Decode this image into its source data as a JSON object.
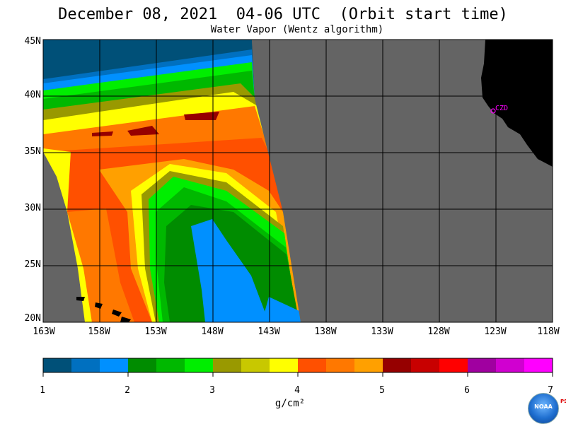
{
  "header": {
    "title": "December 08, 2021  04-06 UTC  (Orbit start time)",
    "subtitle": "Water Vapor (Wentz algorithm)"
  },
  "map": {
    "lat_labels": [
      "45N",
      "40N",
      "35N",
      "30N",
      "25N",
      "20N"
    ],
    "lon_labels": [
      "163W",
      "158W",
      "153W",
      "148W",
      "143W",
      "138W",
      "133W",
      "128W",
      "123W",
      "118W"
    ],
    "lat_range": [
      20,
      45
    ],
    "lon_range": [
      -163,
      -118
    ],
    "city_label": "CZD",
    "colors": {
      "land": "#000000",
      "no_data": "#646464",
      "grid": "#000000",
      "city": "#ff00ff"
    }
  },
  "colorbar": {
    "units": "g/cm²",
    "tick_labels": [
      "1",
      "2",
      "3",
      "4",
      "5",
      "6",
      "7"
    ],
    "colors": [
      "#005078",
      "#0070c0",
      "#0090ff",
      "#008c00",
      "#00b800",
      "#00ee00",
      "#999900",
      "#c8c800",
      "#ffff00",
      "#ff5000",
      "#ff7800",
      "#ffa000",
      "#960000",
      "#c80000",
      "#ff0000",
      "#a000a0",
      "#d000d0",
      "#ff00ff"
    ]
  },
  "logo": {
    "text": "NOAA",
    "side_text": "PSL"
  }
}
